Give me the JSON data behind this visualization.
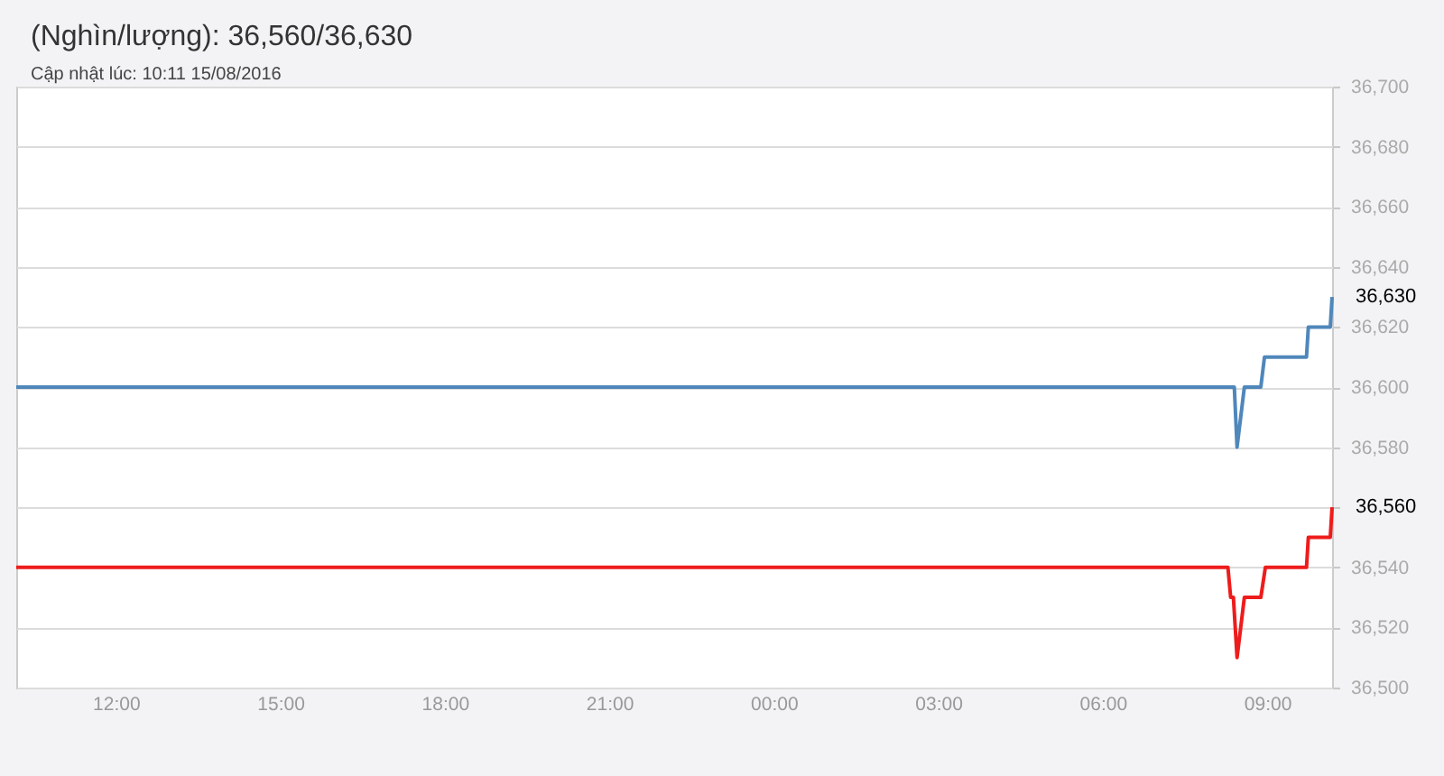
{
  "chart_data": {
    "type": "line",
    "title": "(Nghìn/lượng): 36,560/36,630",
    "subtitle": "Cập nhật lúc: 10:11 15/08/2016",
    "series": [
      {
        "color": "#4f87bb",
        "x": [
          "2016-08-14T10:11",
          "2016-08-15T08:24",
          "2016-08-15T08:27",
          "2016-08-15T08:31",
          "2016-08-15T08:35",
          "2016-08-15T08:53",
          "2016-08-15T08:57",
          "2016-08-15T09:43",
          "2016-08-15T09:45",
          "2016-08-15T10:09",
          "2016-08-15T10:11"
        ],
        "values": [
          36600,
          36600,
          36580,
          36590,
          36600,
          36600,
          36610,
          36610,
          36620,
          36620,
          36630
        ]
      },
      {
        "color": "#ee1c1c",
        "x": [
          "2016-08-14T10:11",
          "2016-08-15T08:17",
          "2016-08-15T08:20",
          "2016-08-15T08:23",
          "2016-08-15T08:27",
          "2016-08-15T08:31",
          "2016-08-15T08:35",
          "2016-08-15T08:53",
          "2016-08-15T08:58",
          "2016-08-15T09:43",
          "2016-08-15T09:45",
          "2016-08-15T10:09",
          "2016-08-15T10:11"
        ],
        "values": [
          36540,
          36540,
          36530,
          36530,
          36510,
          36520,
          36530,
          36530,
          36540,
          36540,
          36550,
          36550,
          36560
        ]
      }
    ],
    "xlim": [
      "2016-08-14T10:11",
      "2016-08-15T10:11"
    ],
    "xticks": [
      {
        "value": "2016-08-14T12:00",
        "label": "12:00"
      },
      {
        "value": "2016-08-14T15:00",
        "label": "15:00"
      },
      {
        "value": "2016-08-14T18:00",
        "label": "18:00"
      },
      {
        "value": "2016-08-14T21:00",
        "label": "21:00"
      },
      {
        "value": "2016-08-15T00:00",
        "label": "00:00"
      },
      {
        "value": "2016-08-15T03:00",
        "label": "03:00"
      },
      {
        "value": "2016-08-15T06:00",
        "label": "06:00"
      },
      {
        "value": "2016-08-15T09:00",
        "label": "09:00"
      }
    ],
    "ylim": [
      36500,
      36700
    ],
    "yticks": [
      {
        "value": 36500,
        "label": "36,500"
      },
      {
        "value": 36520,
        "label": "36,520"
      },
      {
        "value": 36540,
        "label": "36,540"
      },
      {
        "value": 36560,
        "label": null
      },
      {
        "value": 36580,
        "label": "36,580"
      },
      {
        "value": 36600,
        "label": "36,600"
      },
      {
        "value": 36620,
        "label": "36,620"
      },
      {
        "value": 36640,
        "label": "36,640"
      },
      {
        "value": 36660,
        "label": "36,660"
      },
      {
        "value": 36680,
        "label": "36,680"
      },
      {
        "value": 36700,
        "label": "36,700"
      }
    ],
    "grid": "y",
    "line_style": "solid",
    "annotations": [
      {
        "text": "36,630",
        "x": "2016-08-15T10:11",
        "y": 36630
      },
      {
        "text": "36,560",
        "x": "2016-08-15T10:11",
        "y": 36560
      }
    ]
  }
}
